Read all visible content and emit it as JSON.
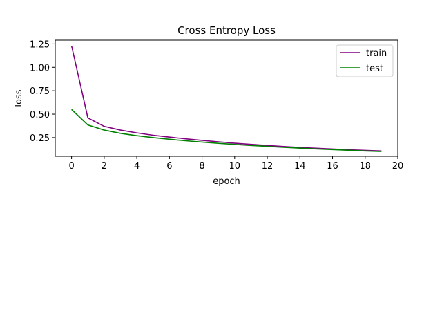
{
  "chart_data": {
    "type": "line",
    "title": "Cross Entropy Loss",
    "xlabel": "epoch",
    "ylabel": "loss",
    "xlim": [
      -1,
      20
    ],
    "ylim": [
      0.05,
      1.29
    ],
    "xticks": [
      0,
      2,
      4,
      6,
      8,
      10,
      12,
      14,
      16,
      18,
      20
    ],
    "yticks": [
      0.25,
      0.5,
      0.75,
      1.0,
      1.25
    ],
    "ytick_labels": [
      "0.25",
      "0.50",
      "0.75",
      "1.00",
      "1.25"
    ],
    "grid": false,
    "legend_position": "top-right",
    "x": [
      0,
      1,
      2,
      3,
      4,
      5,
      6,
      7,
      8,
      9,
      10,
      11,
      12,
      13,
      14,
      15,
      16,
      17,
      18,
      19
    ],
    "series": [
      {
        "name": "train",
        "color": "#800080",
        "values": [
          1.23,
          0.46,
          0.37,
          0.33,
          0.3,
          0.275,
          0.255,
          0.237,
          0.22,
          0.205,
          0.19,
          0.178,
          0.166,
          0.155,
          0.145,
          0.136,
          0.128,
          0.12,
          0.113,
          0.107
        ]
      },
      {
        "name": "test",
        "color": "#008000",
        "values": [
          0.55,
          0.385,
          0.33,
          0.295,
          0.27,
          0.25,
          0.232,
          0.216,
          0.202,
          0.189,
          0.177,
          0.166,
          0.156,
          0.146,
          0.137,
          0.129,
          0.121,
          0.114,
          0.107,
          0.101
        ]
      }
    ]
  }
}
